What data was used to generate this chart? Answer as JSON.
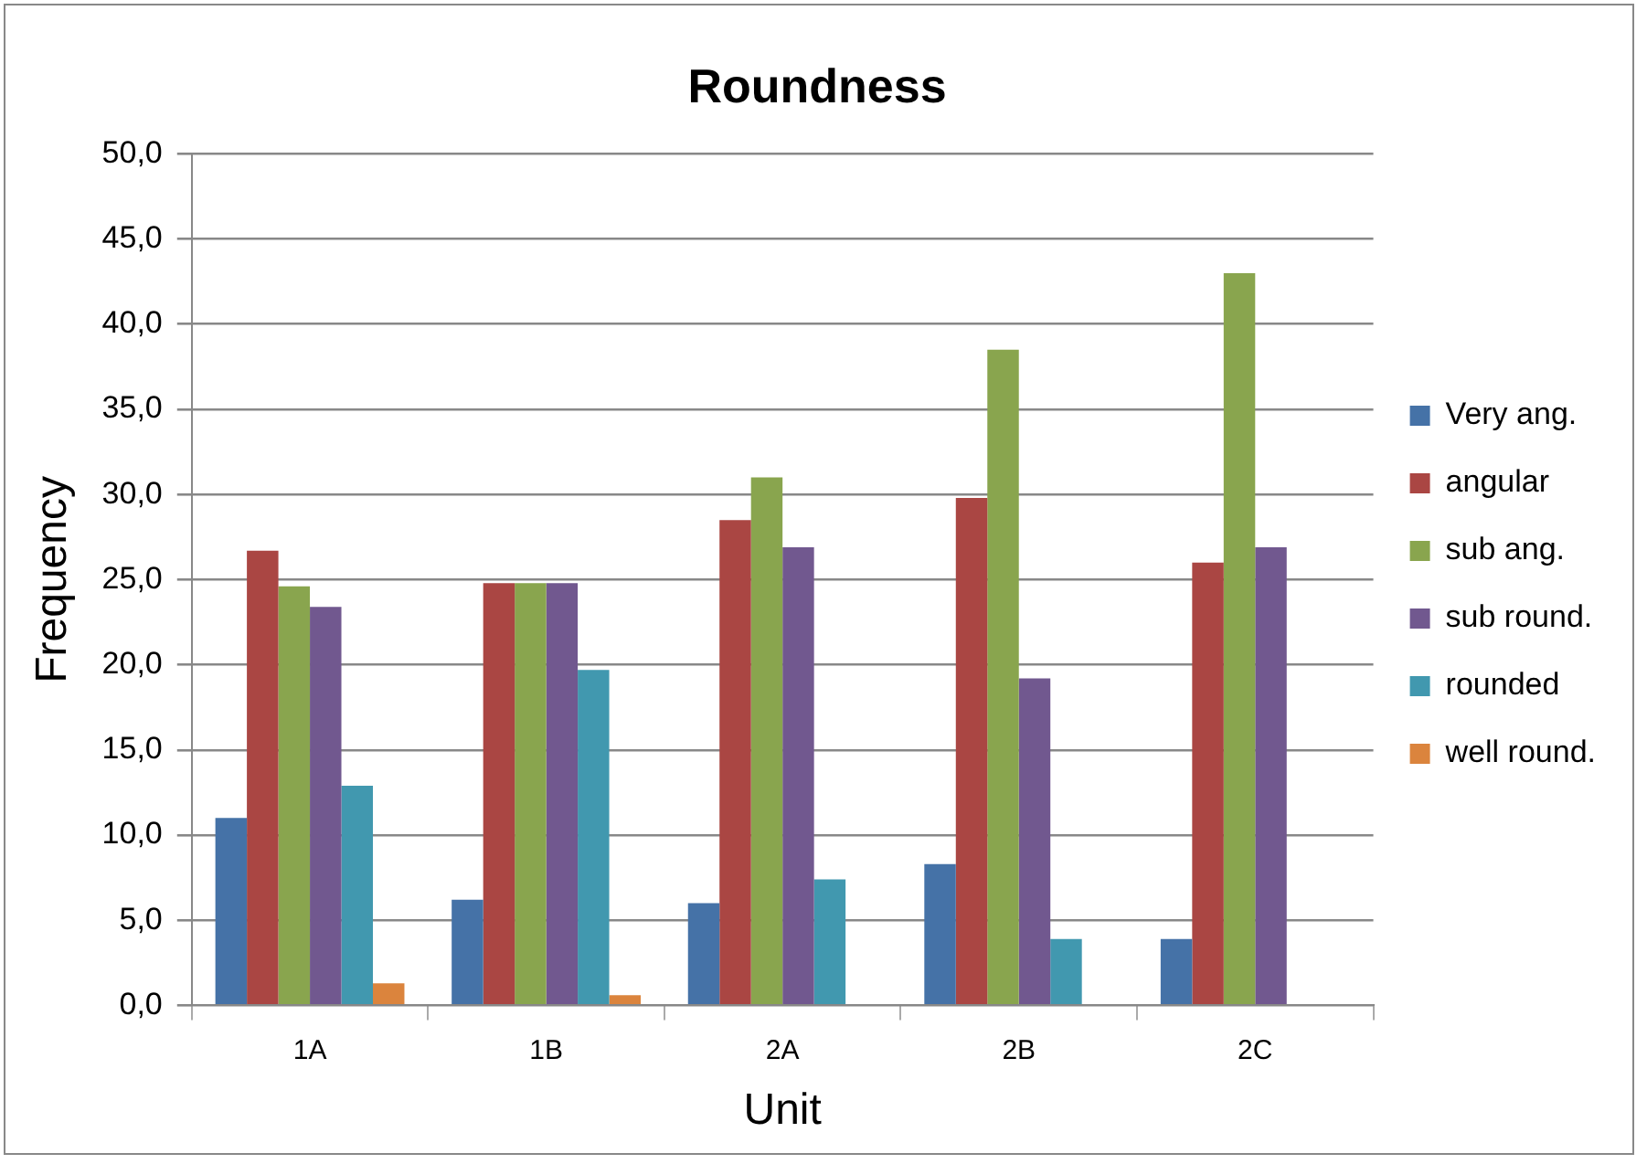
{
  "chart_data": {
    "type": "bar",
    "title": "Roundness",
    "xlabel": "Unit",
    "ylabel": "Frequency",
    "categories": [
      "1A",
      "1B",
      "2A",
      "2B",
      "2C"
    ],
    "series": [
      {
        "name": "Very ang.",
        "color": "#4572a7",
        "values": [
          11.0,
          6.2,
          6.0,
          8.3,
          3.9
        ]
      },
      {
        "name": "angular",
        "color": "#aa4643",
        "values": [
          26.7,
          24.8,
          28.5,
          29.8,
          26.0
        ]
      },
      {
        "name": "sub ang.",
        "color": "#89a54e",
        "values": [
          24.6,
          24.8,
          31.0,
          38.5,
          43.0
        ]
      },
      {
        "name": "sub round.",
        "color": "#71588f",
        "values": [
          23.4,
          24.8,
          26.9,
          19.2,
          26.9
        ]
      },
      {
        "name": "rounded",
        "color": "#4198af",
        "values": [
          12.9,
          19.7,
          7.4,
          3.9,
          null
        ]
      },
      {
        "name": "well round.",
        "color": "#db843d",
        "values": [
          1.3,
          0.6,
          null,
          null,
          null
        ]
      }
    ],
    "ylim": [
      0,
      50
    ],
    "yticks": [
      {
        "value": 0,
        "label": "0,0"
      },
      {
        "value": 5,
        "label": "5,0"
      },
      {
        "value": 10,
        "label": "10,0"
      },
      {
        "value": 15,
        "label": "15,0"
      },
      {
        "value": 20,
        "label": "20,0"
      },
      {
        "value": 25,
        "label": "25,0"
      },
      {
        "value": 30,
        "label": "30,0"
      },
      {
        "value": 35,
        "label": "35,0"
      },
      {
        "value": 40,
        "label": "40,0"
      },
      {
        "value": 45,
        "label": "45,0"
      },
      {
        "value": 50,
        "label": "50,0"
      }
    ],
    "grid": "y",
    "legend": "right"
  }
}
